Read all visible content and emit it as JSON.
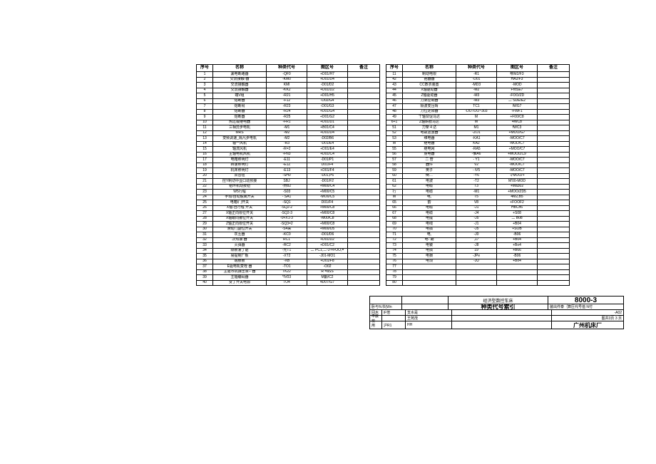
{
  "headers": {
    "seq": "序号",
    "name": "名称",
    "code": "种类代号",
    "zone": "图区号",
    "note": "备注"
  },
  "left_rows": [
    {
      "seq": "1",
      "name": "漏电断路器",
      "code": "-QF0",
      "zone": "+D01/H7",
      "note": ""
    },
    {
      "seq": "2",
      "name": "交流接触-器",
      "code": "-KM0",
      "zone": "+D01/D4",
      "note": ""
    },
    {
      "seq": "3",
      "name": "交流接触器",
      "code": "KMl",
      "zone": "-D01/D2",
      "note": ""
    },
    {
      "seq": "4",
      "name": "交流接触器",
      "code": "-KK2",
      "zone": "+D01/D2",
      "note": ""
    },
    {
      "seq": "5",
      "name": "端V组",
      "code": "-R21",
      "zone": "+D01/H5",
      "note": ""
    },
    {
      "seq": "6",
      "name": "熔断器",
      "code": "-F12",
      "zone": "-D02/G4",
      "note": ""
    },
    {
      "seq": "7",
      "name": "熔断舄",
      "code": "-R23",
      "zone": "-D01/G3",
      "note": ""
    },
    {
      "seq": "8",
      "name": "熔断器",
      "code": "-R24",
      "zone": "+D01/G4",
      "note": ""
    },
    {
      "seq": "9",
      "name": "熔断器",
      "code": "-R25",
      "zone": "+D01/G2",
      "note": ""
    },
    {
      "seq": "10",
      "name": "热过载继电器",
      "code": "-FR1",
      "zone": "+D01/D1",
      "note": ""
    },
    {
      "seq": "11",
      "name": "三相异步电机",
      "code": "-M1",
      "zone": "+B01/C4",
      "note": ""
    },
    {
      "seq": "12",
      "name": "MRS",
      "code": "-M2",
      "zone": "+D01/D4",
      "note": ""
    },
    {
      "seq": "13",
      "name": "变频调速_隔凡步电机",
      "code": "-M2",
      "zone": "-D02/B6",
      "note": ""
    },
    {
      "seq": "14",
      "name": "轴一风机",
      "code": "-R3",
      "zone": "-D01/E4",
      "note": ""
    },
    {
      "seq": "15",
      "name": "轴流风机",
      "code": "-R=2",
      "zone": "+D01/E4",
      "note": ""
    },
    {
      "seq": "16",
      "name": "主轴电机风机",
      "code": "-FN3",
      "zone": "+D01/C4",
      "note": ""
    },
    {
      "seq": "17",
      "name": "电箱照明灯",
      "code": "-E11",
      "zone": "-D01/P1",
      "note": ""
    },
    {
      "seq": "18",
      "name": "转速照明灯",
      "code": "-E1Z",
      "zone": "D01/F4",
      "note": ""
    },
    {
      "seq": "19",
      "name": "机床照明灯",
      "code": "-E13",
      "zone": "+D01/F4",
      "note": ""
    },
    {
      "seq": "20",
      "name": "双音钮",
      "code": "-SH0",
      "zone": "-D01,P6",
      "note": ""
    },
    {
      "seq": "21",
      "name": "控Y制切中显口动预接",
      "code": "SBJ",
      "zone": "-D01/F2",
      "note": ""
    },
    {
      "seq": "22",
      "name": "铝环机动按钮",
      "code": "-卅82",
      "zone": "+M00/C4",
      "note": ""
    },
    {
      "seq": "23",
      "name": "W5行程",
      "code": "-S03",
      "zone": "+M00/C5",
      "note": ""
    },
    {
      "seq": "24",
      "name": "手动/自动脱离开关",
      "code": "- SA1",
      "zone": "-MO0/C5",
      "note": ""
    },
    {
      "seq": "25",
      "name": "电箱/门开关",
      "code": "-SQ1",
      "zone": "D01/F4",
      "note": ""
    },
    {
      "seq": "26",
      "name": "X轴-自行程 开关",
      "code": "-SQ2-2",
      "zone": "+M00/C8",
      "note": ""
    },
    {
      "seq": "27",
      "name": "X轴正向限位开关",
      "code": "-SQ2-3",
      "zone": "+M00/C8",
      "note": ""
    },
    {
      "seq": "28",
      "name": "X轴跟向撤位开关",
      "code": "-0+X1-3",
      "zone": "-M00/C8",
      "note": ""
    },
    {
      "seq": "29",
      "name": "Z轴正向限位开关",
      "code": "-SQ3=2",
      "zone": "+M00/C8",
      "note": ""
    },
    {
      "seq": "30",
      "name": "滑动门副位开关",
      "code": "-S4采",
      "zone": "+M00/D5",
      "note": ""
    },
    {
      "seq": "31",
      "name": "灰互器",
      "code": "-KC0",
      "zone": "-D01/D6",
      "note": ""
    },
    {
      "seq": "32",
      "name": "次热接 器",
      "code": "RC1",
      "zone": "+D01/D2",
      "note": ""
    },
    {
      "seq": "33",
      "name": "灭弭器",
      "code": "-RC2",
      "zone": "+D01/C2",
      "note": ""
    },
    {
      "seq": "34",
      "name": "隔板灌丁能",
      "code": "-光T1",
      "zone": "二 PC1,二-2-+FOO,=",
      "note": ""
    },
    {
      "seq": "35",
      "name": "易提制厂板",
      "code": "-XT2",
      "zone": "-J01-MO1",
      "note": ""
    },
    {
      "seq": "36",
      "name": "端板板",
      "code": "-XB",
      "zone": "+D01/F8",
      "note": ""
    },
    {
      "seq": "37",
      "name": "E驱电机变栓 器",
      "code": "-TO1",
      "zone": "-O02",
      "note": ""
    },
    {
      "seq": "38",
      "name": "主驱市机接压液--  器",
      "code": "TK22",
      "zone": "R =aSS",
      "note": ""
    },
    {
      "seq": "39",
      "name": "主轴编码器",
      "code": "*IV03",
      "zone": "M颤/C2",
      "note": ""
    },
    {
      "seq": "40",
      "name": "变丁开关电源",
      "code": "TO4",
      "zone": "4D07/G7",
      "note": ""
    }
  ],
  "right_rows": [
    {
      "seq": "11",
      "name": "制动电限",
      "code": "-R1",
      "zone": "咻M2/F3",
      "note": ""
    },
    {
      "seq": "42",
      "name": "抱器器",
      "code": "-D01",
      "zone": "HA2/F3",
      "note": ""
    },
    {
      "seq": "43",
      "name": "CC数衣装置",
      "code": "-MD3",
      "zone": "-MOD",
      "note": ""
    },
    {
      "seq": "44",
      "name": "X轴驱动器",
      "code": "-M2",
      "zone": "FroSE7",
      "note": ""
    },
    {
      "seq": "45",
      "name": "Z轴驱动器",
      "code": "-M3",
      "zone": "-FOO/ZD",
      "note": ""
    },
    {
      "seq": "46",
      "name": "刀架控制器",
      "code": "-M3",
      "zone": "二 SDE/E2",
      "note": ""
    },
    {
      "seq": "47",
      "name": "隔波变压晴",
      "code": "TC1",
      "zone": "IWG7",
      "note": ""
    },
    {
      "seq": "48",
      "name": "刀位定阳器",
      "code": "-DOTOO~303",
      "zone": "-FWF1",
      "note": ""
    },
    {
      "seq": "49",
      "name": "丅轴甘促马达",
      "code": "M",
      "zone": "+F00/C8",
      "note": ""
    },
    {
      "seq": "6+1",
      "name": "Z轴厛肢马达",
      "code": "M",
      "zone": "4WC8",
      "note": ""
    },
    {
      "seq": "51",
      "name": "刀架 4 达",
      "code": "M1",
      "zone": "fWC3",
      "note": ""
    },
    {
      "seq": "52",
      "name": "电故滤波器",
      "code": "-ZO1",
      "zone": "+MOO/G7",
      "note": ""
    },
    {
      "seq": "53",
      "name": "维电器",
      "code": "-KA1",
      "zone": "-MOO/C7",
      "note": ""
    },
    {
      "seq": "M",
      "name": "继电器",
      "code": "KA2",
      "zone": "-MOD/C7",
      "note": ""
    },
    {
      "seq": "55",
      "name": "继电网",
      "code": "-RA5",
      "zone": "+MOO/C7",
      "note": ""
    },
    {
      "seq": "56",
      "name": "虔电器",
      "code": "-惟A6",
      "zone": "+MOO/ZC9",
      "note": ""
    },
    {
      "seq": "57",
      "name": "二 管",
      "code": "- Y1",
      "zone": "-MOO/C7",
      "note": ""
    },
    {
      "seq": "58",
      "name": "器件",
      "code": "V2",
      "zone": "-MOO/C7",
      "note": ""
    },
    {
      "seq": "59",
      "name": "英子",
      "code": "- iV5",
      "zone": "-MOO/C7",
      "note": ""
    },
    {
      "seq": "60",
      "name": "倒…",
      "code": "-Y6",
      "zone": "マMOO/+",
      "note": ""
    },
    {
      "seq": "61",
      "name": "电波",
      "code": "-T2",
      "zone": "M'00-MOD",
      "note": ""
    },
    {
      "seq": "62",
      "name": "电缆",
      "code": "T3",
      "zone": "+Ma302",
      "note": ""
    },
    {
      "seq": "行",
      "name": "电缆 ",
      "code": "-M1",
      "zone": "+MOO/ZD5",
      "note": ""
    },
    {
      "seq": "M",
      "name": "电,",
      "code": "T5",
      "zone": "4M2,B5",
      "note": ""
    },
    {
      "seq": "65",
      "name": "韵",
      "code": "V8",
      "zone": "+FOOF2",
      "note": ""
    },
    {
      "seq": "66",
      "name": "电缆",
      "code": "-J1",
      "zone": "HBCh6",
      "note": ""
    },
    {
      "seq": "67",
      "name": "电缆",
      "code": "-J4",
      "zone": "+S08",
      "note": ""
    },
    {
      "seq": "68",
      "name": "电提",
      "code": "-J5",
      "zone": "二 B08",
      "note": ""
    },
    {
      "seq": "69",
      "name": "电线",
      "code": "-J1",
      "zone": "+B04",
      "note": ""
    },
    {
      "seq": "70",
      "name": "电损",
      "code": "-J5",
      "zone": "+SOB",
      "note": ""
    },
    {
      "seq": "71",
      "name": "电,",
      "code": "-J0",
      "zone": "-B06",
      "note": ""
    },
    {
      "seq": "72",
      "name": "电- 期",
      "code": ",17",
      "zone": "+B04",
      "note": ""
    },
    {
      "seq": "73",
      "name": "电铍",
      "code": "-J8",
      "zone": "+Bo4",
      "note": ""
    },
    {
      "seq": "74",
      "name": "电损",
      "code": "19",
      "zone": "+B66",
      "note": ""
    },
    {
      "seq": "75",
      "name": "电損",
      "code": "-JPe",
      "zone": "-B06",
      "note": ""
    },
    {
      "seq": "76",
      "name": "电须",
      "code": "-JU",
      "zone": "+Bo4",
      "note": ""
    },
    {
      "seq": "77",
      "name": "",
      "code": "",
      "zone": "",
      "note": ""
    },
    {
      "seq": "78",
      "name": "",
      "code": "",
      "zone": "",
      "note": ""
    },
    {
      "seq": "79",
      "name": "",
      "code": "",
      "zone": "",
      "note": ""
    },
    {
      "seq": "80",
      "name": "",
      "code": "",
      "zone": "",
      "note": ""
    }
  ],
  "title_block": {
    "machine": "经济型数控车床",
    "drawing_no": "8000-3",
    "index_title": "种类代号索引",
    "parts_label": "装出件泰｛算压代号值 N付",
    "parts_code": "-A02",
    "sheet_label": "图共3页 3 页",
    "company": "广州机床厂",
    "cells": {
      "a1": "卧与%书(Wn",
      "a2": "支水是",
      "a3": "王苑茂",
      "b1": "iF倍",
      "b2": "沪R1",
      "c1": "HH",
      "l1": "回木",
      "l2": "中腋校",
      "l3": "用"
    }
  }
}
